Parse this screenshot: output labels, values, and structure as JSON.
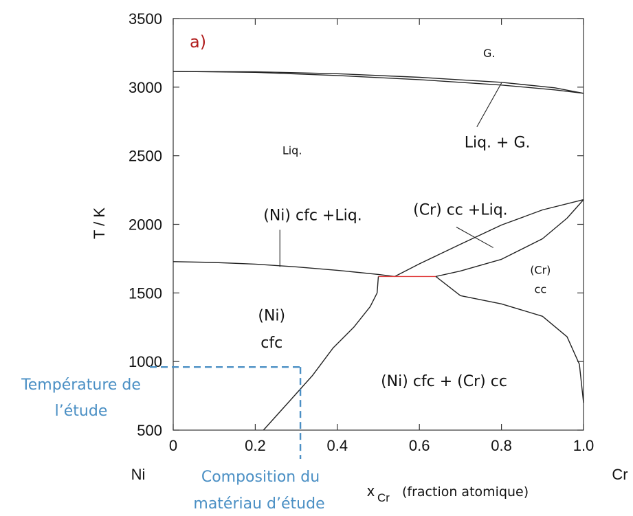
{
  "chart_data": {
    "type": "line",
    "panel_label": "a)",
    "ylabel": "T / K",
    "xlabel_symbol": "x",
    "xlabel_subscript": "Cr",
    "xlabel_note": "(fraction atomique)",
    "x_end_left": "Ni",
    "x_end_right": "Cr",
    "xlim": [
      0,
      1.0
    ],
    "ylim": [
      500,
      3500
    ],
    "x_ticks": [
      0,
      0.2,
      0.4,
      0.6,
      0.8,
      1.0
    ],
    "x_tick_labels": [
      "0",
      "0.2",
      "0.4",
      "0.6",
      "0.8",
      "1.0"
    ],
    "y_ticks": [
      500,
      1000,
      1500,
      2000,
      2500,
      3000,
      3500
    ],
    "y_tick_labels": [
      "500",
      "1000",
      "1500",
      "2000",
      "2500",
      "3000",
      "3500"
    ],
    "grid": false,
    "series": [
      {
        "id": "gas-boundary-upper",
        "color": "#222222",
        "x": [
          0,
          0.2,
          0.4,
          0.6,
          0.8,
          0.93,
          1.0
        ],
        "y": [
          3115,
          3112,
          3098,
          3072,
          3035,
          2995,
          2955
        ]
      },
      {
        "id": "gas-boundary-lower",
        "color": "#222222",
        "x": [
          0,
          0.2,
          0.4,
          0.6,
          0.8,
          0.93,
          1.0
        ],
        "y": [
          3115,
          3108,
          3085,
          3055,
          3015,
          2980,
          2955
        ]
      },
      {
        "id": "liquidus-ni-side",
        "color": "#222222",
        "x": [
          0,
          0.1,
          0.2,
          0.3,
          0.4,
          0.5,
          0.54
        ],
        "y": [
          1728,
          1722,
          1710,
          1690,
          1665,
          1635,
          1620
        ]
      },
      {
        "id": "liquidus-cr-side",
        "color": "#222222",
        "x": [
          0.54,
          0.6,
          0.7,
          0.8,
          0.9,
          1.0
        ],
        "y": [
          1620,
          1712,
          1855,
          1995,
          2105,
          2180
        ]
      },
      {
        "id": "solidus-cr-side",
        "color": "#222222",
        "x": [
          0.64,
          0.7,
          0.8,
          0.9,
          0.96,
          1.0
        ],
        "y": [
          1620,
          1660,
          1745,
          1895,
          2045,
          2180
        ]
      },
      {
        "id": "eutectic-line",
        "color": "#e03a3a",
        "x": [
          0.5,
          0.64
        ],
        "y": [
          1620,
          1620
        ]
      },
      {
        "id": "solvus-ni-side",
        "color": "#222222",
        "x": [
          0.5,
          0.497,
          0.48,
          0.44,
          0.39,
          0.34,
          0.28,
          0.22
        ],
        "y": [
          1620,
          1500,
          1400,
          1250,
          1100,
          900,
          700,
          500
        ]
      },
      {
        "id": "solvus-cr-side",
        "color": "#222222",
        "x": [
          0.64,
          0.7,
          0.8,
          0.9,
          0.96,
          0.99,
          1.0
        ],
        "y": [
          1620,
          1480,
          1420,
          1330,
          1180,
          980,
          700
        ]
      }
    ],
    "phase_labels": [
      {
        "id": "label-gas",
        "text": "G.",
        "x": 0.77,
        "y": 3220,
        "size": "small"
      },
      {
        "id": "label-liquid",
        "text": "Liq.",
        "x": 0.29,
        "y": 2510,
        "size": "small"
      },
      {
        "id": "label-liq-gas",
        "text": "Liq. + G.",
        "x": 0.79,
        "y": 2560,
        "size": "large"
      },
      {
        "id": "label-ni-cfc-liq",
        "text": "(Ni) cfc +Liq.",
        "x": 0.34,
        "y": 2030,
        "size": "large"
      },
      {
        "id": "label-cr-cc-liq",
        "text": "(Cr) cc +Liq.",
        "x": 0.7,
        "y": 2070,
        "size": "large"
      },
      {
        "id": "label-cr-cc-1",
        "text": "(Cr)",
        "x": 0.895,
        "y": 1640,
        "size": "small"
      },
      {
        "id": "label-cr-cc-2",
        "text": "cc",
        "x": 0.895,
        "y": 1500,
        "size": "small"
      },
      {
        "id": "label-ni-cfc-1",
        "text": "(Ni)",
        "x": 0.24,
        "y": 1300,
        "size": "large"
      },
      {
        "id": "label-ni-cfc-2",
        "text": "cfc",
        "x": 0.24,
        "y": 1100,
        "size": "large"
      },
      {
        "id": "label-two-phase",
        "text": "(Ni) cfc + (Cr) cc",
        "x": 0.66,
        "y": 820,
        "size": "large"
      }
    ],
    "leader_lines": [
      {
        "id": "leader-liq-gas",
        "from": [
          0.74,
          2710
        ],
        "to": [
          0.8,
          3030
        ]
      },
      {
        "id": "leader-ni-cfc-liq",
        "from": [
          0.26,
          1960
        ],
        "to": [
          0.26,
          1690
        ]
      },
      {
        "id": "leader-cr-cc-liq",
        "from": [
          0.69,
          1980
        ],
        "to": [
          0.78,
          1830
        ]
      }
    ],
    "study_temperature": 960,
    "study_composition": 0.31
  },
  "annotations": {
    "temperature_line1": "Température de",
    "temperature_line2": "l’étude",
    "composition_line1": "Composition du",
    "composition_line2": "matériau d’étude",
    "color": "#4a8fc4"
  }
}
